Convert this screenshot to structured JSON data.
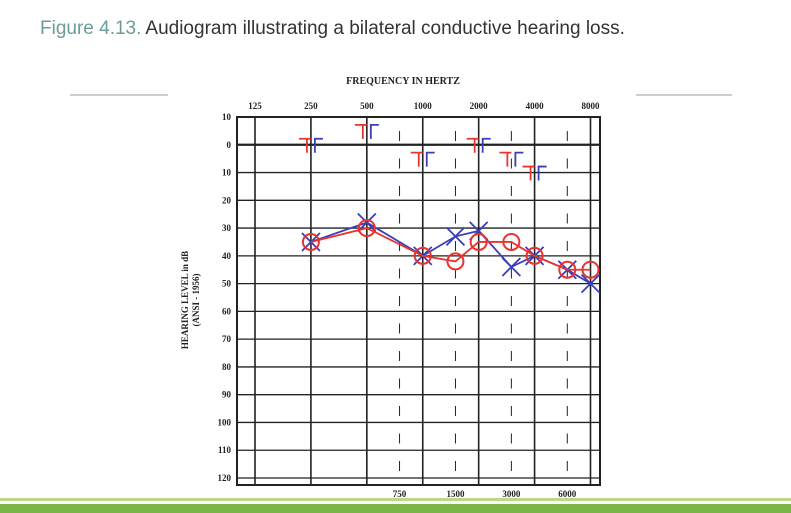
{
  "caption": {
    "label": "Figure 4.13.",
    "text": "Audiogram illustrating a bilateral conductive hearing loss."
  },
  "chart_data": {
    "type": "audiogram",
    "title": "FREQUENCY IN HERTZ",
    "ylabel": [
      "HEARING LEVEL in dB",
      "(ANSI - 1956)"
    ],
    "x": [
      250,
      500,
      1000,
      1500,
      2000,
      3000,
      4000,
      6000,
      8000
    ],
    "xlog": true,
    "xlim": [
      100,
      9000
    ],
    "xticks": [
      125,
      250,
      500,
      1000,
      2000,
      4000,
      8000
    ],
    "xticks_bottom": [
      750,
      1500,
      3000,
      6000
    ],
    "ylim": [
      -10,
      120
    ],
    "yinverted": true,
    "yticks": [
      {
        "value": -10,
        "label": "10"
      },
      0,
      10,
      20,
      30,
      40,
      50,
      60,
      70,
      80,
      90,
      100,
      110,
      120
    ],
    "grid": true,
    "series": [
      {
        "marker": "x",
        "color": "#3a3fb8",
        "values": [
          35,
          28,
          40,
          33,
          31,
          44,
          40,
          45,
          50
        ]
      },
      {
        "marker": "o",
        "color": "#e8332e",
        "values": [
          35,
          30,
          40,
          42,
          35,
          35,
          40,
          45,
          45
        ]
      },
      {
        "marker": "[",
        "color": "#e8332e",
        "values": [
          0,
          -5,
          5,
          null,
          0,
          5,
          10,
          null,
          null
        ]
      },
      {
        "marker": "]",
        "color": "#3a3fb8",
        "values": [
          0,
          -5,
          5,
          null,
          0,
          5,
          10,
          null,
          null
        ]
      }
    ]
  }
}
